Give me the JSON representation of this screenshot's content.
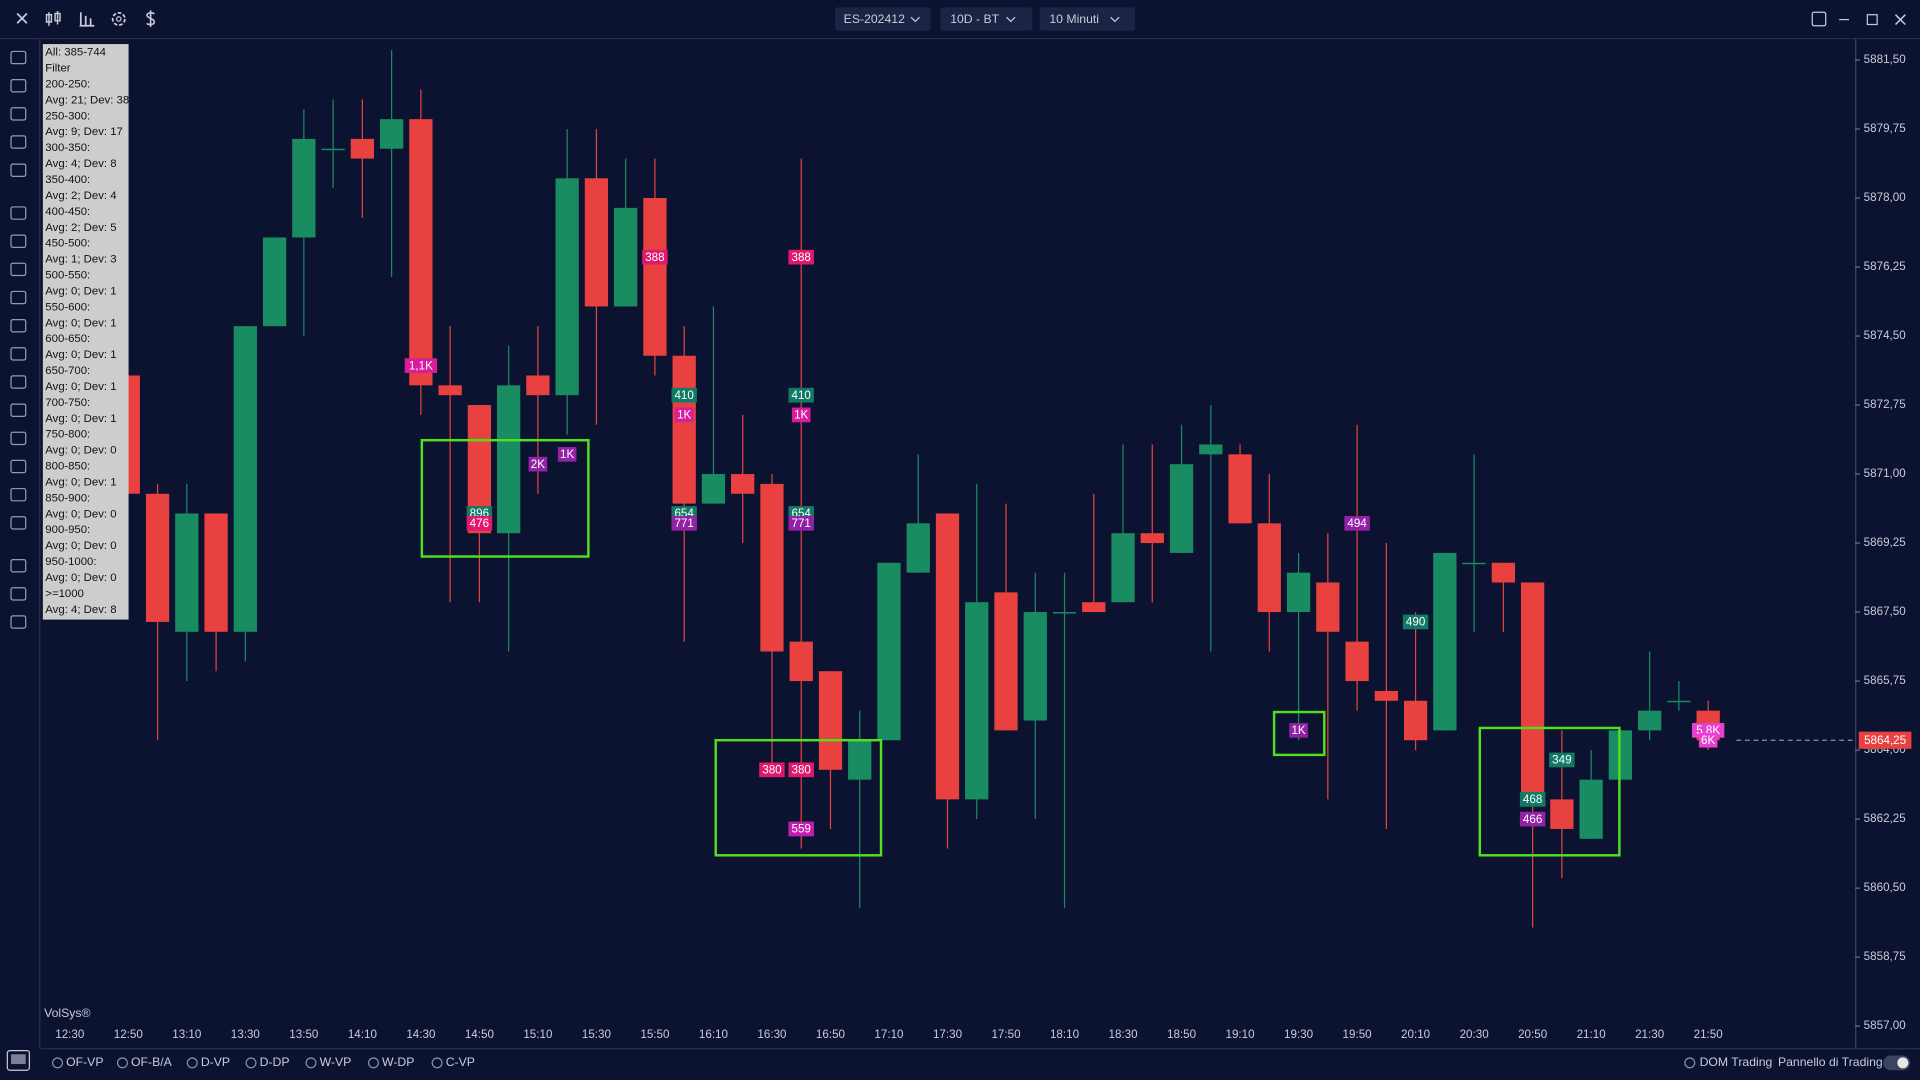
{
  "top_bar": {
    "symbol": "ES-202412",
    "period": "10D - BT",
    "timeframe": "10 Minuti"
  },
  "info_panel": [
    "All: 385-744",
    "Filter",
    "200-250:",
    "Avg: 21; Dev: 38",
    "250-300:",
    "Avg: 9; Dev: 17",
    "300-350:",
    "Avg: 4; Dev: 8",
    "350-400:",
    "Avg: 2; Dev: 4",
    "400-450:",
    "Avg: 2; Dev: 5",
    "450-500:",
    "Avg: 1; Dev: 3",
    "500-550:",
    "Avg: 0; Dev: 1",
    "550-600:",
    "Avg: 0; Dev: 1",
    "600-650:",
    "Avg: 0; Dev: 1",
    "650-700:",
    "Avg: 0; Dev: 1",
    "700-750:",
    "Avg: 0; Dev: 1",
    "750-800:",
    "Avg: 0; Dev: 0",
    "800-850:",
    "Avg: 0; Dev: 1",
    "850-900:",
    "Avg: 0; Dev: 0",
    "900-950:",
    "Avg: 0; Dev: 0",
    "950-1000:",
    "Avg: 0; Dev: 0",
    ">=1000",
    "Avg: 4; Dev: 8"
  ],
  "watermark": "VolSys®",
  "bottom_options": [
    "OF-VP",
    "OF-B/A",
    "D-VP",
    "D-DP",
    "W-VP",
    "W-DP",
    "C-VP"
  ],
  "bottom_right": {
    "dom": "DOM Trading",
    "panel": "Pannello di Trading"
  },
  "chart_data": {
    "type": "candlestick",
    "categories": [
      "12:30",
      null,
      "12:50",
      null,
      "13:10",
      null,
      "13:30",
      null,
      "13:50",
      null,
      "14:10",
      null,
      "14:30",
      null,
      "14:50",
      null,
      "15:10",
      null,
      "15:30",
      null,
      "15:50",
      null,
      "16:10",
      null,
      "16:30",
      null,
      "16:50",
      null,
      "17:10",
      null,
      "17:30",
      null,
      "17:50",
      null,
      "18:10",
      null,
      "18:30",
      null,
      "18:50",
      null,
      "19:10",
      null,
      "19:30",
      null,
      "19:50",
      null,
      "20:10",
      null,
      "20:30",
      null,
      "20:50",
      null,
      "21:10",
      null,
      "21:30",
      null,
      "21:50"
    ],
    "open": [
      null,
      null,
      5873.5,
      5870.5,
      5867,
      5870,
      5867,
      5874.75,
      5877,
      5879.25,
      5879.5,
      5879.25,
      5880,
      5873.25,
      5872.75,
      5869.5,
      5873.5,
      5873,
      5878.5,
      5875.25,
      5878,
      5874,
      5870.25,
      5871,
      5870.75,
      5866.75,
      5866,
      5863.25,
      5864.25,
      5868.5,
      5870,
      5862.75,
      5868,
      5864.75,
      5867.5,
      5867.75,
      5867.75,
      5869.5,
      5869,
      5871.5,
      5871.5,
      5869.75,
      5867.5,
      5868.25,
      5866.75,
      5865.5,
      5865.25,
      5864.5,
      5868.75,
      5868.75,
      5868.25,
      5862.75,
      5861.75,
      5863.25,
      5864.5,
      5865.25,
      5865
    ],
    "high": [
      null,
      null,
      5873.5,
      5870.75,
      5870.75,
      5870,
      5874.75,
      5877,
      5880.25,
      5880.5,
      5880.5,
      5881.75,
      5880.75,
      5874.75,
      5872.75,
      5874.25,
      5874.75,
      5879.75,
      5879.75,
      5879,
      5879,
      5874.75,
      5875.25,
      5872.5,
      5871,
      5879,
      5866,
      5865,
      5868.75,
      5871.5,
      5870,
      5870.75,
      5870.25,
      5868.5,
      5868.5,
      5870.5,
      5871.75,
      5871.75,
      5872.25,
      5872.75,
      5871.75,
      5871,
      5869,
      5869.5,
      5872.25,
      5869.25,
      5867.5,
      5869,
      5871.5,
      5868.75,
      5868.25,
      5864.5,
      5864,
      5864.5,
      5866.5,
      5865.75,
      5865.25
    ],
    "low": [
      null,
      null,
      5870.5,
      5864.25,
      5865.75,
      5866,
      5866.25,
      5874.75,
      5874.5,
      5878.25,
      5877.5,
      5876,
      5872.5,
      5867.75,
      5867.75,
      5866.5,
      5870.5,
      5872,
      5872.25,
      5875.25,
      5873.5,
      5866.75,
      5870.25,
      5869.25,
      5863.5,
      5861.5,
      5862,
      5860,
      5864.25,
      5868.5,
      5861.5,
      5862.25,
      5864.5,
      5862.25,
      5860,
      5867.5,
      5867.75,
      5867.75,
      5869,
      5866.5,
      5869.75,
      5866.5,
      5864.25,
      5862.75,
      5865,
      5862,
      5864,
      5864.5,
      5867,
      5867,
      5859.5,
      5860.75,
      5861.75,
      5863.25,
      5864.25,
      5865,
      5864
    ],
    "close": [
      null,
      null,
      5870.5,
      5867.25,
      5870,
      5867,
      5874.75,
      5877,
      5879.5,
      5879.25,
      5879,
      5880,
      5873.25,
      5873,
      5869.5,
      5873.25,
      5873,
      5878.5,
      5875.25,
      5877.75,
      5874,
      5870.25,
      5871,
      5870.5,
      5866.5,
      5865.75,
      5863.5,
      5864.25,
      5868.75,
      5869.75,
      5862.75,
      5867.75,
      5864.5,
      5867.5,
      5867.5,
      5867.5,
      5869.5,
      5869.25,
      5871.25,
      5871.75,
      5869.75,
      5867.5,
      5868.5,
      5867,
      5865.75,
      5865.25,
      5864.25,
      5869,
      5868.75,
      5868.25,
      5862.75,
      5862,
      5863.25,
      5864.5,
      5865,
      5865.25,
      5864.25
    ],
    "up_color": "#1a8c62",
    "down_color": "#e8413f",
    "ylim": [
      5857,
      5881.5
    ],
    "yticks": [
      {
        "value": 5857,
        "label": "5857,00"
      },
      {
        "value": 5858.75,
        "label": "5858,75"
      },
      {
        "value": 5860.5,
        "label": "5860,50"
      },
      {
        "value": 5862.25,
        "label": "5862,25"
      },
      {
        "value": 5864,
        "label": "5864,00"
      },
      {
        "value": 5865.75,
        "label": "5865,75"
      },
      {
        "value": 5867.5,
        "label": "5867,50"
      },
      {
        "value": 5869.25,
        "label": "5869,25"
      },
      {
        "value": 5871,
        "label": "5871,00"
      },
      {
        "value": 5872.75,
        "label": "5872,75"
      },
      {
        "value": 5874.5,
        "label": "5874,50"
      },
      {
        "value": 5876.25,
        "label": "5876,25"
      },
      {
        "value": 5878,
        "label": "5878,00"
      },
      {
        "value": 5879.75,
        "label": "5879,75"
      },
      {
        "value": 5881.5,
        "label": "5881,50"
      }
    ],
    "grid": false,
    "last_price": {
      "value": 5864.25,
      "label": "5864,25"
    },
    "volume_labels": [
      null,
      null,
      null,
      null,
      null,
      null,
      null,
      null,
      null,
      null,
      null,
      null,
      [
        {
          "label": "1,1K",
          "y": 5873.75,
          "color": "#d81c9c"
        }
      ],
      null,
      [
        {
          "label": "896",
          "y": 5870,
          "color": "#117a64"
        },
        {
          "label": "476",
          "y": 5869.75,
          "color": "#e0186e"
        }
      ],
      null,
      [
        {
          "label": "2K",
          "y": 5871.25,
          "color": "#9321a6"
        }
      ],
      [
        {
          "label": "1K",
          "y": 5871.5,
          "color": "#9321a6"
        }
      ],
      null,
      null,
      [
        {
          "label": "388",
          "y": 5876.5,
          "color": "#e0186e"
        }
      ],
      [
        {
          "label": "410",
          "y": 5873,
          "color": "#117a64"
        },
        {
          "label": "1K",
          "y": 5872.5,
          "color": "#d81c9c"
        },
        {
          "label": "654",
          "y": 5870,
          "color": "#117a64"
        },
        {
          "label": "771",
          "y": 5869.75,
          "color": "#9321a6"
        }
      ],
      null,
      null,
      [
        {
          "label": "380",
          "y": 5863.5,
          "color": "#e0186e"
        }
      ],
      [
        {
          "label": "388",
          "y": 5876.5,
          "color": "#e0186e"
        },
        {
          "label": "410",
          "y": 5873,
          "color": "#117a64"
        },
        {
          "label": "1K",
          "y": 5872.5,
          "color": "#d81c9c"
        },
        {
          "label": "654",
          "y": 5870,
          "color": "#117a64"
        },
        {
          "label": "771",
          "y": 5869.75,
          "color": "#9321a6"
        },
        {
          "label": "380",
          "y": 5863.5,
          "color": "#e0186e"
        },
        {
          "label": "559",
          "y": 5862,
          "color": "#c21fb0"
        }
      ],
      null,
      null,
      null,
      null,
      null,
      null,
      null,
      null,
      null,
      null,
      null,
      null,
      null,
      null,
      null,
      null,
      [
        {
          "label": "1K",
          "y": 5864.5,
          "color": "#9321a6"
        }
      ],
      null,
      [
        {
          "label": "494",
          "y": 5869.75,
          "color": "#9321a6"
        }
      ],
      null,
      [
        {
          "label": "490",
          "y": 5867.25,
          "color": "#117a64"
        }
      ],
      null,
      null,
      null,
      [
        {
          "label": "468",
          "y": 5862.75,
          "color": "#117a64"
        },
        {
          "label": "466",
          "y": 5862.25,
          "color": "#9321a6"
        }
      ],
      [
        {
          "label": "349",
          "y": 5863.75,
          "color": "#117a64"
        }
      ],
      null,
      null,
      null,
      null,
      [
        {
          "label": "5,8K",
          "y": 5864.5,
          "color": "#e83fd0"
        },
        {
          "label": "6K",
          "y": 5864.25,
          "color": "#e83fd0"
        }
      ]
    ]
  }
}
